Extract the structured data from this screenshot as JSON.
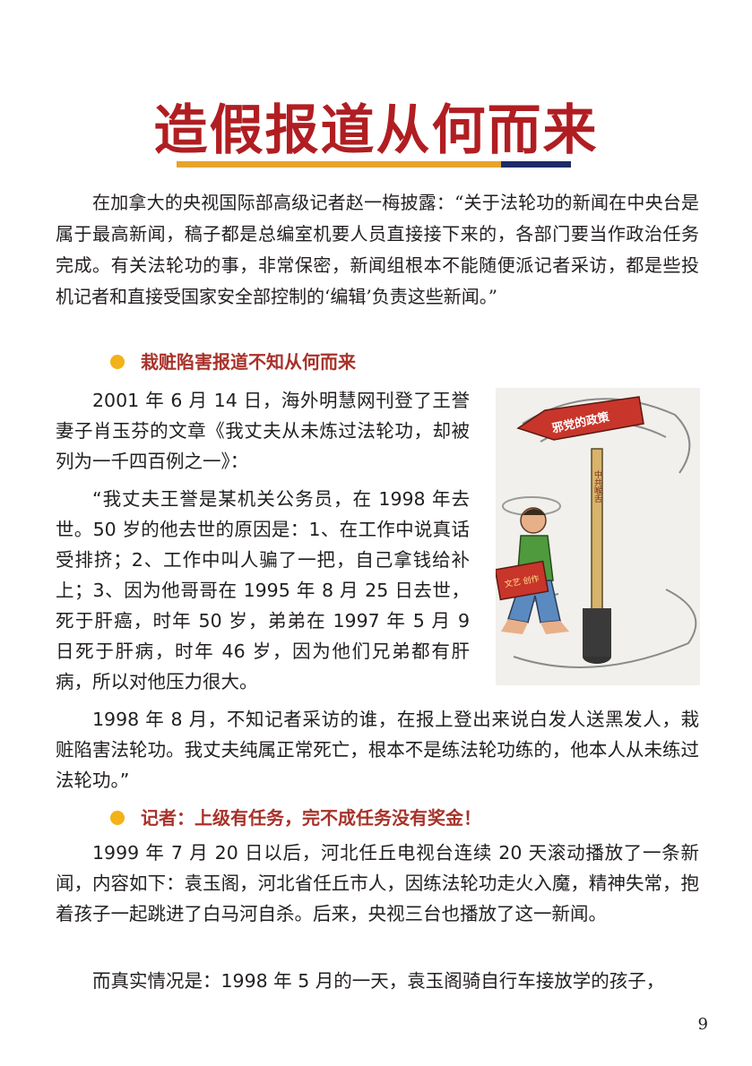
{
  "title": "造假报道从何而来",
  "intro": "在加拿大的央视国际部高级记者赵一梅披露：“关于法轮功的新闻在中央台是属于最高新闻，稿子都是总编室机要人员直接接下来的，各部门要当作政治任务完成。有关法轮功的事，非常保密，新闻组根本不能随便派记者采访，都是些投机记者和直接受国家安全部控制的‘编辑’负责这些新闻。”",
  "section1": {
    "heading": "栽赃陷害报道不知从何而来",
    "p1": "2001 年 6 月 14 日，海外明慧网刊登了王誉妻子肖玉芬的文章《我丈夫从未炼过法轮功，却被列为一千四百例之一》：",
    "p2": "“我丈夫王誉是某机关公务员，在 1998 年去世。50 岁的他去世的原因是：1、在工作中说真话受排挤；2、工作中叫人骗了一把，自己拿钱给补上；3、因为他哥哥在 1995 年 8 月 25 日去世，死于肝癌，时年 50 岁，弟弟在 1997 年 5 月 9 日死于肝病，时年 46 岁，因为他们兄弟都有肝病，所以对他压力很大。",
    "p3": "1998 年 8 月，不知记者采访的谁，在报上登出来说白发人送黑发人，栽赃陷害法轮功。我丈夫纯属正常死亡，根本不是练法轮功练的，他本人从未练过法轮功。”"
  },
  "figure": {
    "sign_text": "邪党的政策",
    "pole_text": "中共喉舌",
    "book_text": "文艺 创作"
  },
  "section2": {
    "heading": "记者：上级有任务，完不成任务没有奖金！",
    "p1": "1999 年 7 月 20 日以后，河北任丘电视台连续 20 天滚动播放了一条新闻，内容如下：袁玉阁，河北省任丘市人，因练法轮功走火入魔，精神失常，抱着孩子一起跳进了白马河自杀。后来，央视三台也播放了这一新闻。",
    "p2": "而真实情况是：1998 年 5 月的一天，袁玉阁骑自行车接放学的孩子，"
  },
  "page_number": "9",
  "colors": {
    "title": "#b01e22",
    "heading": "#a8322a",
    "bullet": "#f2b21a",
    "bar_gold": "#e8a32b",
    "bar_navy": "#1f2a68"
  }
}
